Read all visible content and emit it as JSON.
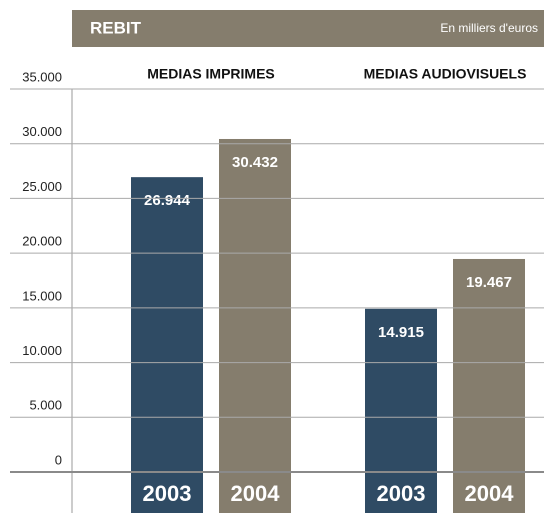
{
  "chart_data": {
    "type": "bar",
    "title": "REBIT",
    "subtitle": "En milliers d'euros",
    "categories": [
      "MEDIAS IMPRIMES",
      "MEDIAS AUDIOVISUELS"
    ],
    "series": [
      {
        "name": "2003",
        "color": "#2f4b64",
        "values": [
          26944,
          14915
        ],
        "value_labels": [
          "26.944",
          "14.915"
        ]
      },
      {
        "name": "2004",
        "color": "#857d6d",
        "values": [
          30432,
          19467
        ],
        "value_labels": [
          "30.432",
          "19.467"
        ]
      }
    ],
    "ylim": [
      0,
      35000
    ],
    "yticks": [
      0,
      {
        "value": 5000,
        "label": "5.000"
      },
      {
        "value": 10000,
        "label": "10.000"
      },
      {
        "value": 15000,
        "label": "15.000"
      },
      {
        "value": 20000,
        "label": "20.000"
      },
      {
        "value": 25000,
        "label": "25.000"
      },
      {
        "value": 30000,
        "label": "30.000"
      },
      {
        "value": 35000,
        "label": "35.000"
      }
    ],
    "grid": true
  }
}
